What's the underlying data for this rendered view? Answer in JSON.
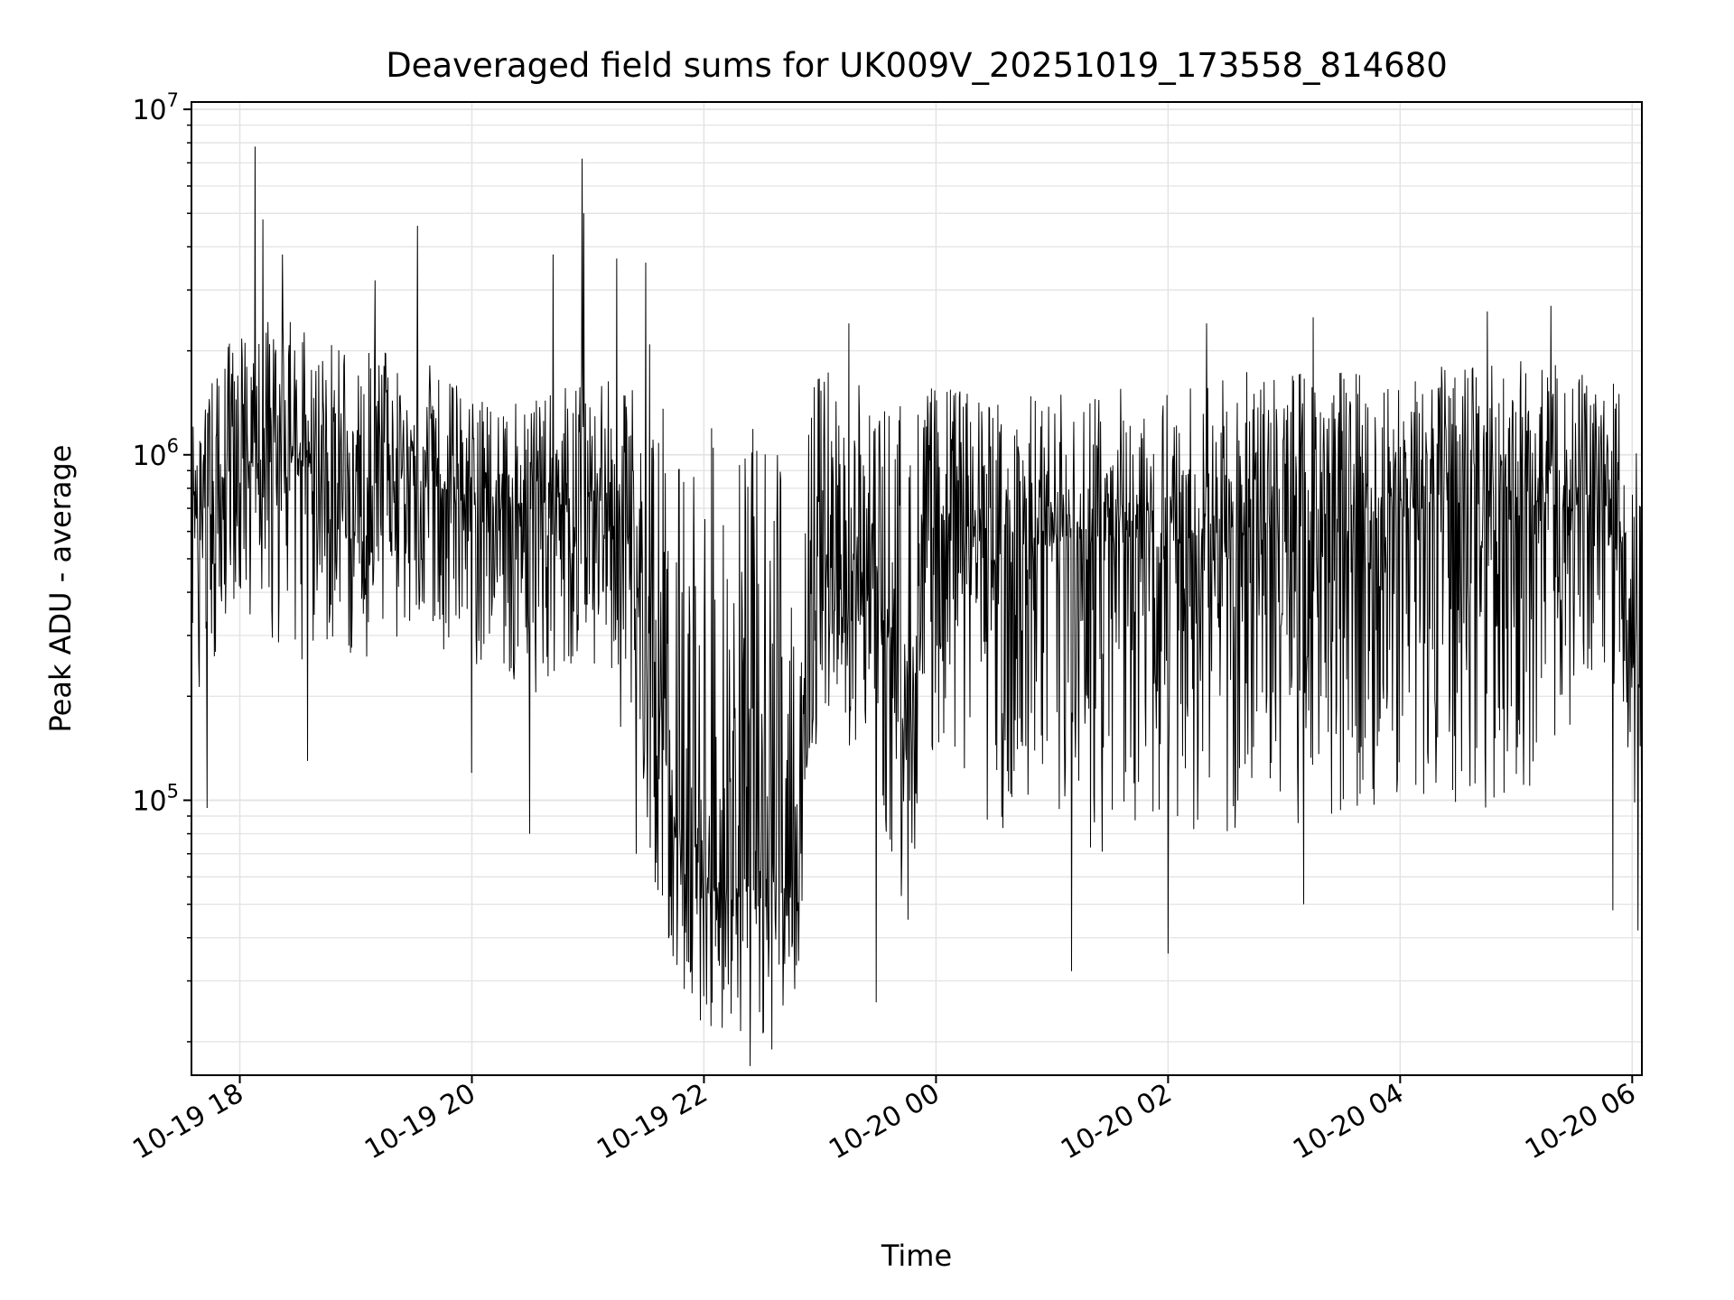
{
  "chart_data": {
    "type": "line",
    "title": "Deaveraged field sums for UK009V_20251019_173558_814680",
    "xlabel": "Time",
    "ylabel": "Peak ADU - average",
    "y_scale": "log",
    "ylim": [
      16000,
      10500000
    ],
    "xlim": [
      "2025-10-19T17:35",
      "2025-10-20T06:05"
    ],
    "grid": true,
    "line_color": "#000000",
    "grid_color": "#e3e3e3",
    "x_ticks": [
      {
        "label": "10-19 18",
        "time": "2025-10-19T18:00"
      },
      {
        "label": "10-19 20",
        "time": "2025-10-19T20:00"
      },
      {
        "label": "10-19 22",
        "time": "2025-10-19T22:00"
      },
      {
        "label": "10-20 00",
        "time": "2025-10-20T00:00"
      },
      {
        "label": "10-20 02",
        "time": "2025-10-20T02:00"
      },
      {
        "label": "10-20 04",
        "time": "2025-10-20T04:00"
      },
      {
        "label": "10-20 06",
        "time": "2025-10-20T06:00"
      }
    ],
    "y_ticks": [
      {
        "value": 100000,
        "base": "10",
        "exp": "5"
      },
      {
        "value": 1000000,
        "base": "10",
        "exp": "6"
      },
      {
        "value": 10000000,
        "base": "10",
        "exp": "7"
      }
    ],
    "series": [
      {
        "envelope": {
          "x": [
            "2025-10-19T17:35",
            "2025-10-19T18:00",
            "2025-10-19T18:30",
            "2025-10-19T19:00",
            "2025-10-19T19:30",
            "2025-10-19T20:00",
            "2025-10-19T20:30",
            "2025-10-19T21:00",
            "2025-10-19T21:20",
            "2025-10-19T21:30",
            "2025-10-19T21:45",
            "2025-10-19T22:00",
            "2025-10-19T22:30",
            "2025-10-19T22:50",
            "2025-10-19T23:00",
            "2025-10-19T23:30",
            "2025-10-19T23:45",
            "2025-10-20T00:00",
            "2025-10-20T00:30",
            "2025-10-20T01:00",
            "2025-10-20T01:30",
            "2025-10-20T02:00",
            "2025-10-20T02:30",
            "2025-10-20T03:00",
            "2025-10-20T03:30",
            "2025-10-20T04:00",
            "2025-10-20T04:30",
            "2025-10-20T05:00",
            "2025-10-20T05:30",
            "2025-10-20T05:55",
            "2025-10-20T06:05"
          ],
          "mid": [
            600000,
            900000,
            1000000,
            800000,
            900000,
            700000,
            700000,
            800000,
            600000,
            300000,
            90000,
            60000,
            55000,
            70000,
            500000,
            400000,
            150000,
            700000,
            500000,
            550000,
            600000,
            550000,
            600000,
            650000,
            650000,
            700000,
            700000,
            750000,
            700000,
            550000,
            150000
          ],
          "low": [
            180000,
            350000,
            250000,
            250000,
            300000,
            250000,
            200000,
            250000,
            150000,
            80000,
            28000,
            22000,
            20000,
            30000,
            200000,
            100000,
            40000,
            150000,
            80000,
            60000,
            70000,
            90000,
            70000,
            80000,
            90000,
            100000,
            90000,
            100000,
            150000,
            200000,
            45000
          ],
          "high": [
            1200000,
            2500000,
            2500000,
            2000000,
            2000000,
            1500000,
            1400000,
            1800000,
            1500000,
            2500000,
            1200000,
            1200000,
            1200000,
            1200000,
            1900000,
            1500000,
            1500000,
            1600000,
            1500000,
            1500000,
            1600000,
            1600000,
            1700000,
            1800000,
            1800000,
            1800000,
            1800000,
            1900000,
            1800000,
            1600000,
            900000
          ]
        },
        "spikes": [
          {
            "x": "2025-10-19T18:08",
            "y": 7800000
          },
          {
            "x": "2025-10-19T18:12",
            "y": 4800000
          },
          {
            "x": "2025-10-19T18:22",
            "y": 3800000
          },
          {
            "x": "2025-10-19T19:10",
            "y": 3200000
          },
          {
            "x": "2025-10-19T19:32",
            "y": 4600000
          },
          {
            "x": "2025-10-19T20:42",
            "y": 3800000
          },
          {
            "x": "2025-10-19T20:57",
            "y": 7200000
          },
          {
            "x": "2025-10-19T20:58",
            "y": 5000000
          },
          {
            "x": "2025-10-19T21:15",
            "y": 3700000
          },
          {
            "x": "2025-10-19T21:30",
            "y": 3600000
          },
          {
            "x": "2025-10-19T23:15",
            "y": 2400000
          },
          {
            "x": "2025-10-20T02:20",
            "y": 2400000
          },
          {
            "x": "2025-10-20T03:15",
            "y": 2500000
          },
          {
            "x": "2025-10-20T04:45",
            "y": 2600000
          },
          {
            "x": "2025-10-20T05:18",
            "y": 2700000
          },
          {
            "x": "2025-10-19T17:43",
            "y": 95000
          },
          {
            "x": "2025-10-19T18:35",
            "y": 130000
          },
          {
            "x": "2025-10-19T20:00",
            "y": 120000
          },
          {
            "x": "2025-10-19T20:30",
            "y": 80000
          },
          {
            "x": "2025-10-19T21:25",
            "y": 70000
          },
          {
            "x": "2025-10-19T22:24",
            "y": 17000
          },
          {
            "x": "2025-10-19T22:35",
            "y": 19000
          },
          {
            "x": "2025-10-19T23:29",
            "y": 26000
          },
          {
            "x": "2025-10-20T01:10",
            "y": 32000
          },
          {
            "x": "2025-10-20T02:00",
            "y": 36000
          },
          {
            "x": "2025-10-20T03:10",
            "y": 50000
          },
          {
            "x": "2025-10-20T05:50",
            "y": 48000
          },
          {
            "x": "2025-10-20T06:03",
            "y": 42000
          }
        ]
      }
    ]
  }
}
